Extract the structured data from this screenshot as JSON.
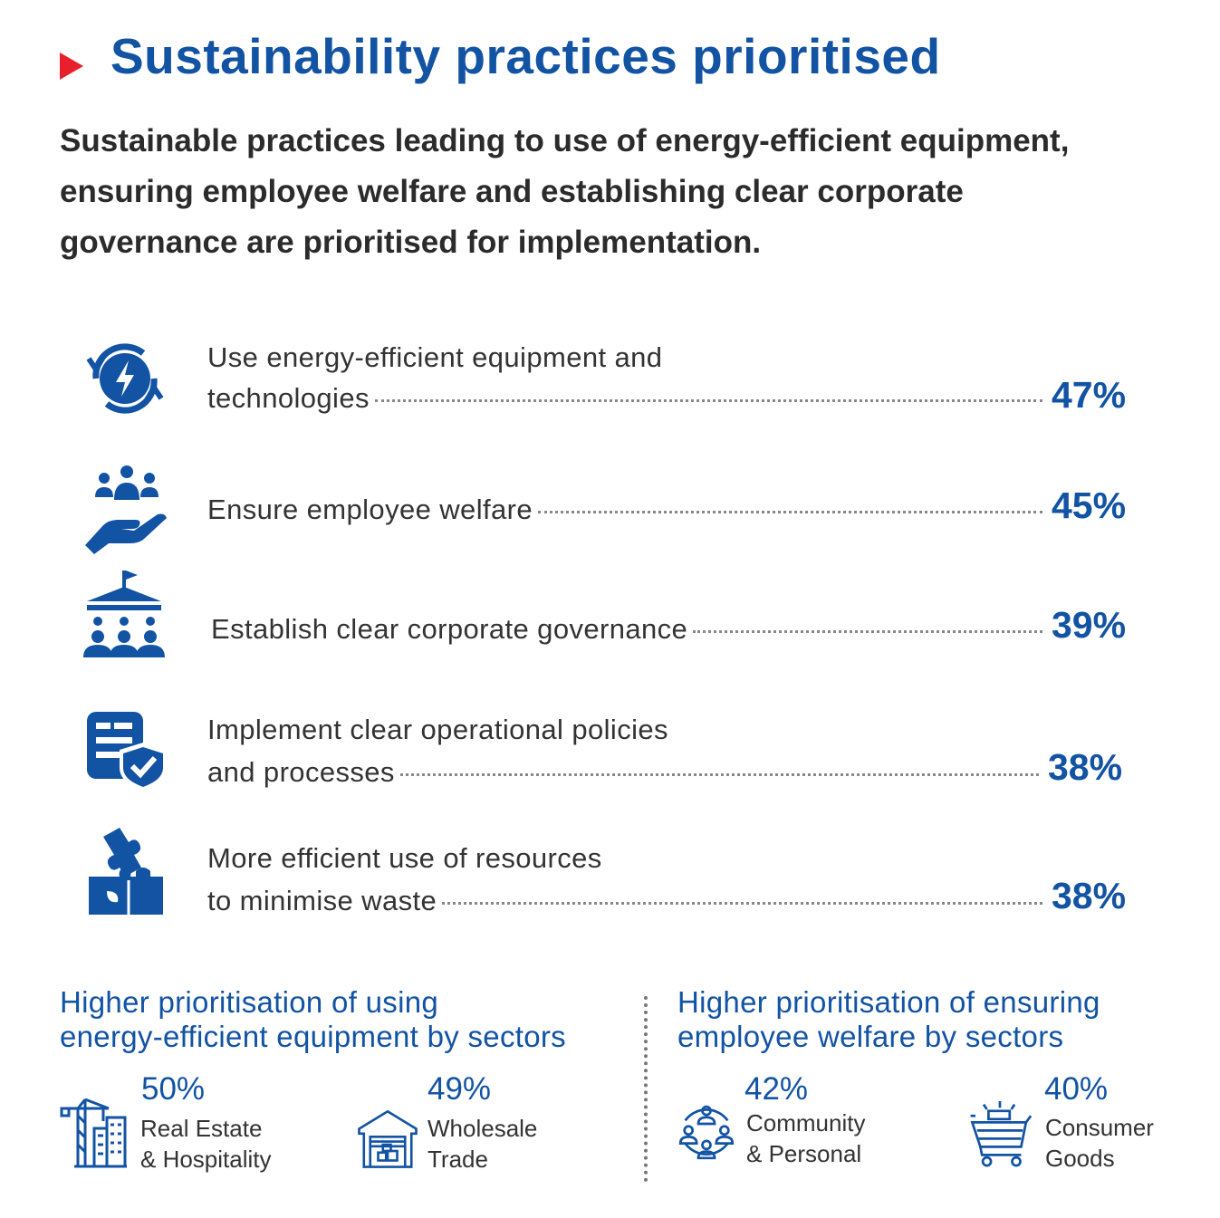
{
  "header": {
    "title": "Sustainability practices prioritised",
    "subtitle": "Sustainable practices leading to use of energy-efficient equipment, ensuring employee welfare and establishing clear corporate governance are prioritised for implementation."
  },
  "practices": [
    {
      "line1": "Use energy-efficient equipment and",
      "line2": "technologies",
      "percent": "47%",
      "icon": "energy-cycle-icon"
    },
    {
      "line1": "",
      "line2": "Ensure employee welfare",
      "percent": "45%",
      "icon": "employee-care-icon"
    },
    {
      "line1": "",
      "line2": "Establish clear corporate governance",
      "percent": "39%",
      "icon": "governance-icon"
    },
    {
      "line1": "Implement clear operational policies",
      "line2": "and processes",
      "percent": "38%",
      "icon": "policy-shield-icon"
    },
    {
      "line1": "More efficient use of resources",
      "line2": "to minimise waste",
      "percent": "38%",
      "icon": "puzzle-icon"
    }
  ],
  "sectors_left": {
    "heading_line1": "Higher prioritisation of using",
    "heading_line2": "energy-efficient equipment by sectors",
    "items": [
      {
        "percent": "50%",
        "name_line1": "Real Estate",
        "name_line2": "& Hospitality",
        "icon": "construction-building-icon"
      },
      {
        "percent": "49%",
        "name_line1": "Wholesale",
        "name_line2": "Trade",
        "icon": "warehouse-icon"
      }
    ]
  },
  "sectors_right": {
    "heading_line1": "Higher prioritisation of ensuring",
    "heading_line2": "employee welfare by sectors",
    "items": [
      {
        "percent": "42%",
        "name_line1": "Community",
        "name_line2": "& Personal",
        "icon": "community-icon"
      },
      {
        "percent": "40%",
        "name_line1": "Consumer",
        "name_line2": "Goods",
        "icon": "shopping-cart-icon"
      }
    ]
  },
  "colors": {
    "accent": "#1253a4",
    "marker": "#e8202e",
    "text": "#333333"
  }
}
